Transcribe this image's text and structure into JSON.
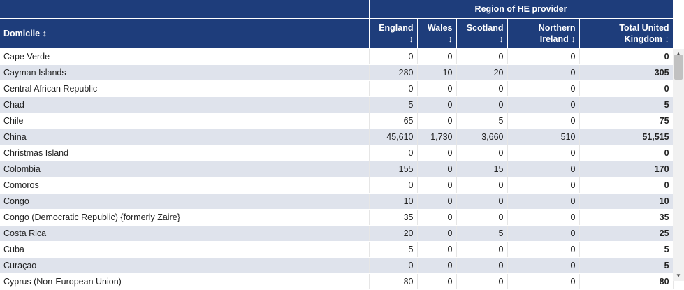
{
  "header": {
    "group_label": "Region of HE provider",
    "columns": [
      {
        "label": "Domicile"
      },
      {
        "label": "England"
      },
      {
        "label": "Wales"
      },
      {
        "label": "Scotland"
      },
      {
        "label": "Northern Ireland"
      },
      {
        "label": "Total United Kingdom"
      }
    ],
    "sort_icon": "↕"
  },
  "rows": [
    {
      "domicile": "Cape Verde",
      "england": "0",
      "wales": "0",
      "scotland": "0",
      "ni": "0",
      "total": "0"
    },
    {
      "domicile": "Cayman Islands",
      "england": "280",
      "wales": "10",
      "scotland": "20",
      "ni": "0",
      "total": "305"
    },
    {
      "domicile": "Central African Republic",
      "england": "0",
      "wales": "0",
      "scotland": "0",
      "ni": "0",
      "total": "0"
    },
    {
      "domicile": "Chad",
      "england": "5",
      "wales": "0",
      "scotland": "0",
      "ni": "0",
      "total": "5"
    },
    {
      "domicile": "Chile",
      "england": "65",
      "wales": "0",
      "scotland": "5",
      "ni": "0",
      "total": "75"
    },
    {
      "domicile": "China",
      "england": "45,610",
      "wales": "1,730",
      "scotland": "3,660",
      "ni": "510",
      "total": "51,515"
    },
    {
      "domicile": "Christmas Island",
      "england": "0",
      "wales": "0",
      "scotland": "0",
      "ni": "0",
      "total": "0"
    },
    {
      "domicile": "Colombia",
      "england": "155",
      "wales": "0",
      "scotland": "15",
      "ni": "0",
      "total": "170"
    },
    {
      "domicile": "Comoros",
      "england": "0",
      "wales": "0",
      "scotland": "0",
      "ni": "0",
      "total": "0"
    },
    {
      "domicile": "Congo",
      "england": "10",
      "wales": "0",
      "scotland": "0",
      "ni": "0",
      "total": "10"
    },
    {
      "domicile": "Congo (Democratic Republic) {formerly Zaire}",
      "england": "35",
      "wales": "0",
      "scotland": "0",
      "ni": "0",
      "total": "35"
    },
    {
      "domicile": "Costa Rica",
      "england": "20",
      "wales": "0",
      "scotland": "5",
      "ni": "0",
      "total": "25"
    },
    {
      "domicile": "Cuba",
      "england": "5",
      "wales": "0",
      "scotland": "0",
      "ni": "0",
      "total": "5"
    },
    {
      "domicile": "Curaçao",
      "england": "0",
      "wales": "0",
      "scotland": "0",
      "ni": "0",
      "total": "5"
    },
    {
      "domicile": "Cyprus (Non-European Union)",
      "england": "80",
      "wales": "0",
      "scotland": "0",
      "ni": "0",
      "total": "80"
    }
  ],
  "scrollbar": {
    "up_icon": "▲",
    "down_icon": "▼"
  }
}
